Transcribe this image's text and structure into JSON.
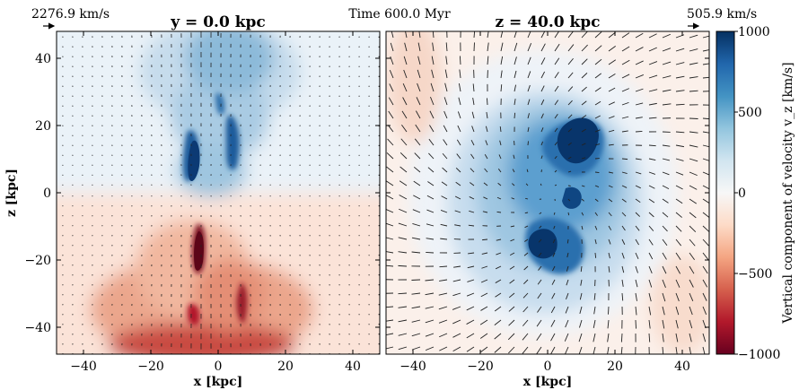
{
  "time_label": "Time 600.0 Myr",
  "chart_data": [
    {
      "type": "heatmap",
      "title": "y = 0.0 kpc",
      "xlabel": "x [kpc]",
      "ylabel": "z [kpc]",
      "xlim": [
        -48,
        48
      ],
      "ylim": [
        -48,
        48
      ],
      "xticks": [
        -40,
        -20,
        0,
        20,
        40
      ],
      "yticks": [
        -40,
        -20,
        0,
        20,
        40
      ],
      "xtick_labels": [
        "−40",
        "−20",
        "0",
        "20",
        "40"
      ],
      "ytick_labels": [
        "−40",
        "−20",
        "0",
        "20",
        "40"
      ],
      "reference_vector": "2276.9 km/s",
      "overlay": "velocity vectors (quiver)"
    },
    {
      "type": "heatmap",
      "title": "z = 40.0 kpc",
      "xlabel": "x [kpc]",
      "xlim": [
        -48,
        48
      ],
      "ylim": [
        -48,
        48
      ],
      "xticks": [
        -40,
        -20,
        0,
        20,
        40
      ],
      "xtick_labels": [
        "−40",
        "−20",
        "0",
        "20",
        "40"
      ],
      "reference_vector": "505.9 km/s",
      "overlay": "velocity vectors (quiver)"
    }
  ],
  "colorbar": {
    "label": "Vertical component of velocity v_z [km/s]",
    "range": [
      -1000,
      1000
    ],
    "ticks": [
      1000,
      500,
      0,
      -500,
      -1000
    ],
    "tick_labels": [
      "1000",
      "500",
      "0",
      "−500",
      "−1000"
    ],
    "colormap": "RdBu",
    "colors": [
      "#67001f",
      "#b2182b",
      "#d6604d",
      "#f4a582",
      "#fddbc7",
      "#f7f7f7",
      "#d1e5f0",
      "#92c5de",
      "#4393c3",
      "#2166ac",
      "#053061"
    ]
  }
}
